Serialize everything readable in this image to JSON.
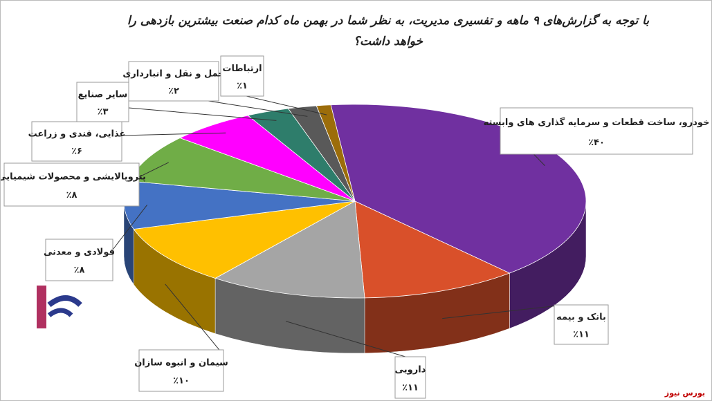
{
  "chart_data": {
    "type": "pie3d",
    "title": "با توجه به گزارش‌های ۹ ماهه و تفسیری مدیریت، به نظر شما در بهمن ماه کدام صنعت بیشترین بازدهی را خواهد داشت؟",
    "categories": [
      "خودرو، ساخت قطعات و سرمایه گذاری های وابسته",
      "بانک و بیمه",
      "دارویی",
      "سیمان و انبوه سازان",
      "فولادی و معدنی",
      "پتروپالایشی و محصولات شیمیایی",
      "غذایی، قندی و زراعت",
      "سایر صنایع",
      "حمل و نقل و انبارداری",
      "ارتباطات"
    ],
    "values": [
      40,
      11,
      11,
      10,
      8,
      8,
      6,
      3,
      2,
      1
    ],
    "value_labels": [
      "٪۴۰",
      "٪۱۱",
      "٪۱۱",
      "٪۱۰",
      "٪۸",
      "٪۸",
      "٪۶",
      "٪۳",
      "٪۲",
      "٪۱"
    ],
    "colors": [
      "#7030a0",
      "#d9502a",
      "#a5a5a5",
      "#ffc000",
      "#4472c4",
      "#70ad47",
      "#ff00ff",
      "#2e7d6b",
      "#595959",
      "#9c6d0a"
    ],
    "watermark": "بورس نیوز"
  }
}
